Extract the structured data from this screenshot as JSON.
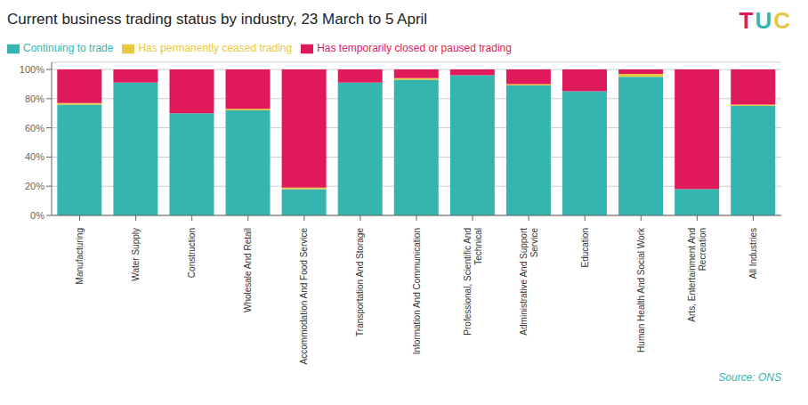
{
  "chart_data": {
    "type": "bar",
    "stacked": true,
    "title": "Current business trading status by industry, 23 March to 5 April",
    "categories": [
      "Manufacturing",
      "Water Supply",
      "Construction",
      "Wholesale And Retail",
      "Accommodation And Food Service",
      "Transportation And Storage",
      "Information And Communication",
      "Professional, Scientific And\nTechnical",
      "Administrative And Support\nService",
      "Education",
      "Human Health And Social Work",
      "Arts, Entertainment And\nRecreation",
      "All Industries"
    ],
    "series": [
      {
        "name": "Continuing to trade",
        "color": "#36b5b0",
        "values": [
          76,
          91,
          70,
          72,
          18,
          91,
          93,
          96,
          89,
          85,
          95,
          18,
          75
        ]
      },
      {
        "name": "Has permanently ceased trading",
        "color": "#e8c840",
        "values": [
          1,
          0,
          0,
          1,
          1,
          0,
          1,
          0,
          1,
          0,
          2,
          0,
          1
        ]
      },
      {
        "name": "Has temporarily closed or paused trading",
        "color": "#e01a5a",
        "values": [
          23,
          9,
          30,
          27,
          81,
          9,
          6,
          4,
          10,
          15,
          3,
          82,
          24
        ]
      }
    ],
    "ylim": [
      0,
      105
    ],
    "yticks": [
      {
        "value": 0,
        "label": "0%"
      },
      {
        "value": 20,
        "label": "20%"
      },
      {
        "value": 40,
        "label": "40%"
      },
      {
        "value": 60,
        "label": "60%"
      },
      {
        "value": 80,
        "label": "80%"
      },
      {
        "value": 100,
        "label": "100%"
      }
    ],
    "grid": true,
    "legend": "upper left",
    "annotations": [
      {
        "text": "Source: ONS",
        "color": "#36b5b0"
      },
      {
        "text": "T",
        "color": "#e01a5a"
      },
      {
        "text": "U",
        "color": "#36b5b0"
      },
      {
        "text": "C",
        "color": "#e8c840"
      }
    ]
  }
}
